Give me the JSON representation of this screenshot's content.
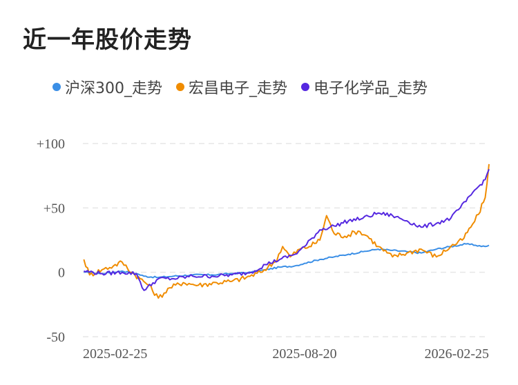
{
  "title": "近一年股价走势",
  "legend": [
    {
      "label": "沪深300_走势",
      "color": "#3b8fe6"
    },
    {
      "label": "宏昌电子_走势",
      "color": "#f08c00"
    },
    {
      "label": "电子化学品_走势",
      "color": "#5528e0"
    }
  ],
  "chart_data": {
    "type": "line",
    "ylim": [
      -50,
      100
    ],
    "xlim": [
      "2024-12-31",
      "2026-03-01"
    ],
    "yticks": [
      {
        "value": 100,
        "label": "+100"
      },
      {
        "value": 50,
        "label": "+50"
      },
      {
        "value": 0,
        "label": "0"
      },
      {
        "value": -50,
        "label": "-50"
      }
    ],
    "xticks": [
      "2025-02-25",
      "2025-08-20",
      "2026-02-25"
    ],
    "grid": true,
    "legend_position": "top",
    "series": [
      {
        "name": "沪深300_走势",
        "color": "#3b8fe6",
        "points": [
          [
            "2025-01-01",
            0
          ],
          [
            "2025-01-20",
            -1
          ],
          [
            "2025-02-10",
            1
          ],
          [
            "2025-02-25",
            -1
          ],
          [
            "2025-03-05",
            -3
          ],
          [
            "2025-03-20",
            -4
          ],
          [
            "2025-04-05",
            -3
          ],
          [
            "2025-04-25",
            -2
          ],
          [
            "2025-05-15",
            -2
          ],
          [
            "2025-06-05",
            -1
          ],
          [
            "2025-06-25",
            0
          ],
          [
            "2025-07-10",
            2
          ],
          [
            "2025-07-25",
            4
          ],
          [
            "2025-08-10",
            5
          ],
          [
            "2025-08-20",
            7
          ],
          [
            "2025-09-05",
            10
          ],
          [
            "2025-09-20",
            12
          ],
          [
            "2025-10-05",
            14
          ],
          [
            "2025-10-20",
            16
          ],
          [
            "2025-11-05",
            18
          ],
          [
            "2025-11-20",
            17
          ],
          [
            "2025-12-05",
            16
          ],
          [
            "2025-12-20",
            15
          ],
          [
            "2026-01-05",
            18
          ],
          [
            "2026-01-20",
            20
          ],
          [
            "2026-02-05",
            22
          ],
          [
            "2026-02-15",
            21
          ],
          [
            "2026-02-25",
            20
          ],
          [
            "2026-03-01",
            21
          ]
        ]
      },
      {
        "name": "宏昌电子_走势",
        "color": "#f08c00",
        "points": [
          [
            "2025-01-01",
            10
          ],
          [
            "2025-01-07",
            -2
          ],
          [
            "2025-01-20",
            2
          ],
          [
            "2025-02-01",
            5
          ],
          [
            "2025-02-10",
            8
          ],
          [
            "2025-02-20",
            0
          ],
          [
            "2025-03-01",
            -5
          ],
          [
            "2025-03-10",
            -10
          ],
          [
            "2025-03-20",
            -20
          ],
          [
            "2025-04-01",
            -12
          ],
          [
            "2025-04-15",
            -8
          ],
          [
            "2025-05-01",
            -10
          ],
          [
            "2025-05-20",
            -8
          ],
          [
            "2025-06-05",
            -7
          ],
          [
            "2025-06-20",
            -4
          ],
          [
            "2025-07-05",
            0
          ],
          [
            "2025-07-20",
            8
          ],
          [
            "2025-07-28",
            20
          ],
          [
            "2025-08-05",
            12
          ],
          [
            "2025-08-15",
            18
          ],
          [
            "2025-08-25",
            20
          ],
          [
            "2025-09-05",
            25
          ],
          [
            "2025-09-12",
            44
          ],
          [
            "2025-09-20",
            30
          ],
          [
            "2025-10-01",
            28
          ],
          [
            "2025-10-15",
            32
          ],
          [
            "2025-10-25",
            28
          ],
          [
            "2025-11-05",
            20
          ],
          [
            "2025-11-20",
            12
          ],
          [
            "2025-12-05",
            15
          ],
          [
            "2025-12-20",
            18
          ],
          [
            "2026-01-05",
            12
          ],
          [
            "2026-01-20",
            20
          ],
          [
            "2026-02-01",
            25
          ],
          [
            "2026-02-10",
            35
          ],
          [
            "2026-02-18",
            45
          ],
          [
            "2026-02-25",
            58
          ],
          [
            "2026-03-01",
            84
          ]
        ]
      },
      {
        "name": "电子化学品_走势",
        "color": "#5528e0",
        "points": [
          [
            "2025-01-01",
            1
          ],
          [
            "2025-01-20",
            -1
          ],
          [
            "2025-02-10",
            0
          ],
          [
            "2025-02-25",
            -1
          ],
          [
            "2025-03-05",
            -14
          ],
          [
            "2025-03-20",
            -5
          ],
          [
            "2025-04-05",
            -5
          ],
          [
            "2025-04-25",
            -3
          ],
          [
            "2025-05-15",
            -3
          ],
          [
            "2025-06-05",
            -2
          ],
          [
            "2025-06-25",
            0
          ],
          [
            "2025-07-10",
            6
          ],
          [
            "2025-07-25",
            10
          ],
          [
            "2025-08-10",
            14
          ],
          [
            "2025-08-20",
            20
          ],
          [
            "2025-09-05",
            33
          ],
          [
            "2025-09-20",
            36
          ],
          [
            "2025-10-05",
            40
          ],
          [
            "2025-10-20",
            42
          ],
          [
            "2025-11-05",
            46
          ],
          [
            "2025-11-20",
            44
          ],
          [
            "2025-12-05",
            40
          ],
          [
            "2025-12-20",
            35
          ],
          [
            "2026-01-05",
            38
          ],
          [
            "2026-01-20",
            42
          ],
          [
            "2026-02-05",
            55
          ],
          [
            "2026-02-12",
            62
          ],
          [
            "2026-02-20",
            68
          ],
          [
            "2026-02-25",
            72
          ],
          [
            "2026-03-01",
            80
          ]
        ]
      }
    ]
  }
}
